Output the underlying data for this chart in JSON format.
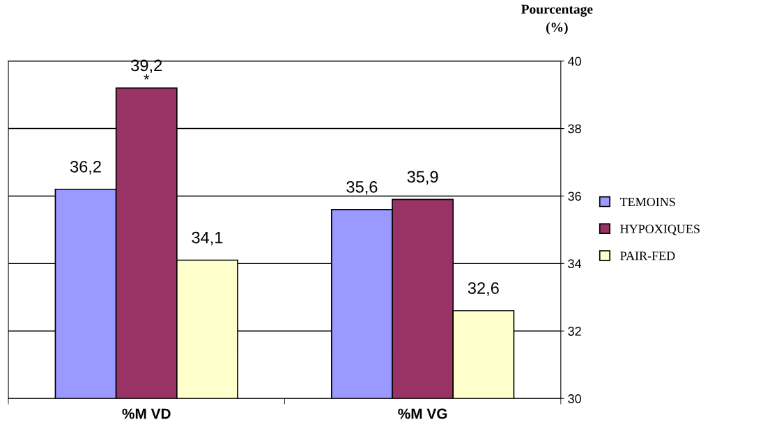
{
  "chart_data": {
    "type": "bar",
    "ylabel": "Pourcentage\n(%)",
    "categories": [
      "%M VD",
      "%M VG"
    ],
    "series": [
      {
        "name": "TEMOINS",
        "color": "#9999ff",
        "values": [
          36.2,
          35.6
        ],
        "value_labels": [
          "36,2",
          "35,6"
        ]
      },
      {
        "name": "HYPOXIQUES",
        "color": "#993366",
        "values": [
          39.2,
          35.9
        ],
        "value_labels": [
          "39,2",
          "35,9"
        ]
      },
      {
        "name": "PAIR-FED",
        "color": "#ffffcc",
        "values": [
          34.1,
          32.6
        ],
        "value_labels": [
          "34,1",
          "32,6"
        ]
      }
    ],
    "annotations": [
      {
        "text": "*",
        "x": "%M VD",
        "y": 39.2
      }
    ],
    "ylim": [
      30,
      40
    ],
    "yticks": [
      30,
      32,
      34,
      36,
      38,
      40
    ],
    "grid": "y",
    "legend": "right"
  }
}
